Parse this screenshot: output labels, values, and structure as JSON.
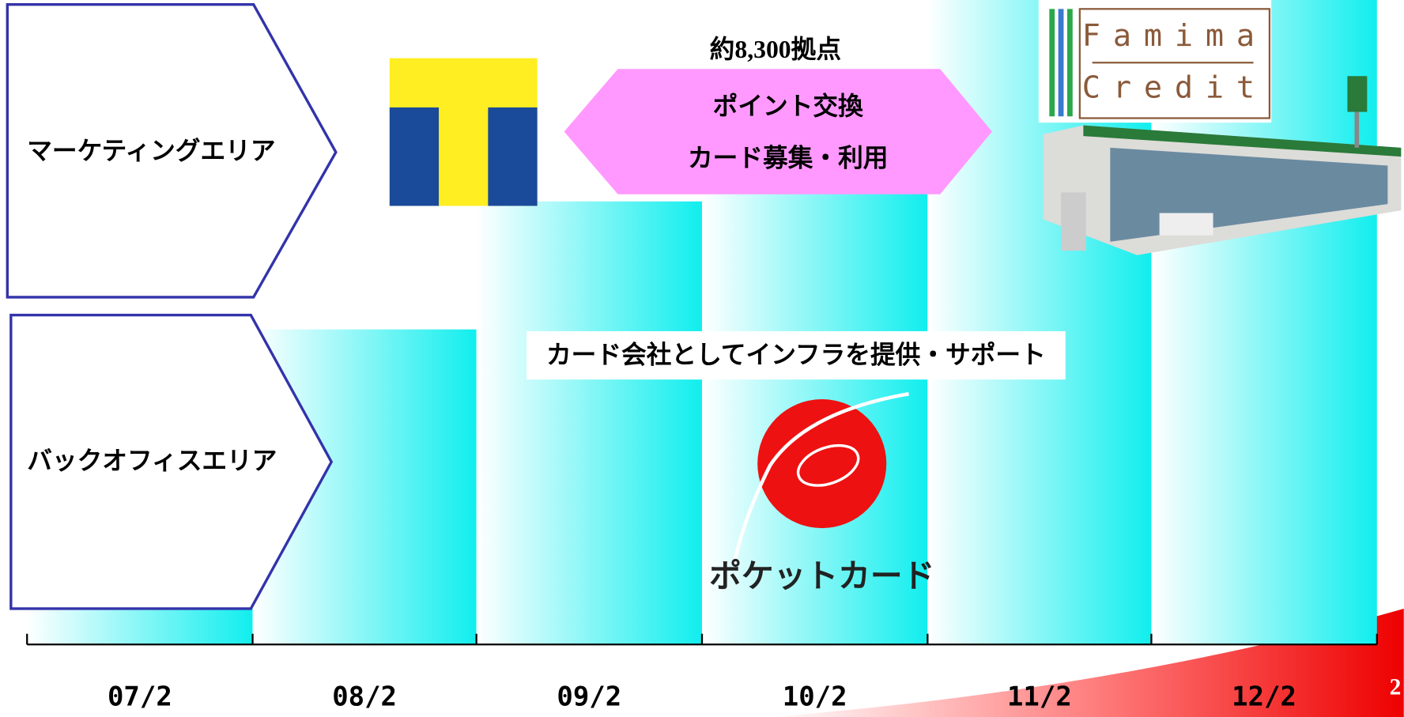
{
  "slide": {
    "areas": [
      "マーケティングエリア",
      "バックオフィスエリア"
    ],
    "periods": [
      "07/2",
      "08/2",
      "09/2",
      "10/2",
      "11/2",
      "12/2"
    ],
    "callout": {
      "note": "約8,300拠点",
      "lines": [
        "ポイント交換",
        "カード募集・利用"
      ]
    },
    "support_text": "カード会社としてインフラを提供・サポート",
    "logos": {
      "famima": [
        "Famima",
        "Credit"
      ],
      "pocket_card": "ポケットカード"
    },
    "page_number": "2"
  }
}
